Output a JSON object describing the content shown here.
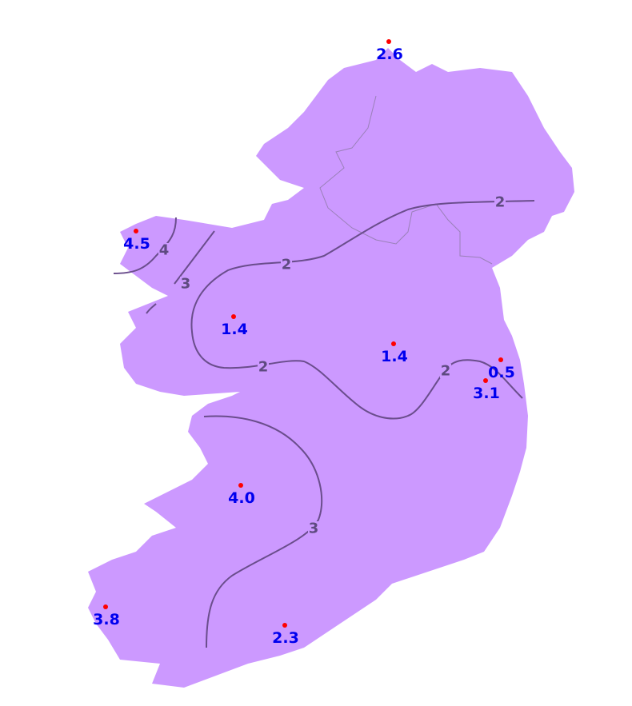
{
  "colors": {
    "land": "#cc99ff",
    "contour": "#6a4d8c",
    "contour_label": "#5e4a80",
    "station_marker": "#ff0000",
    "station_value": "#0000ee",
    "border": "#9a80b8"
  },
  "contour_labels": [
    "2",
    "2",
    "2",
    "2",
    "4",
    "3",
    "3"
  ],
  "stations": [
    {
      "value": "2.6"
    },
    {
      "value": "4.5"
    },
    {
      "value": "1.4"
    },
    {
      "value": "1.4"
    },
    {
      "value": "0.5"
    },
    {
      "value": "3.1"
    },
    {
      "value": "4.0"
    },
    {
      "value": "3.8"
    },
    {
      "value": "2.3"
    }
  ]
}
